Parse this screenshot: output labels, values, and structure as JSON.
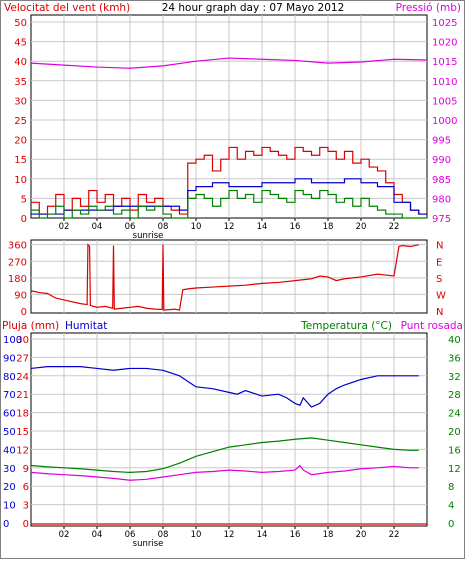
{
  "header": {
    "left_title": "Velocitat del vent (kmh)",
    "center_title": "24 hour graph day : 07 Mayo 2012",
    "right_title": "Pressió (mb)"
  },
  "x_labels": [
    "02",
    "04",
    "06",
    "08",
    "10",
    "12",
    "14",
    "16",
    "18",
    "20",
    "22"
  ],
  "sunrise_label": "sunrise",
  "colors": {
    "wind": "#dd0000",
    "gust": "#0000cc",
    "wind_avg": "#008000",
    "pressure": "#dd00dd",
    "direction": "#dd0000",
    "humidity": "#0000cc",
    "temperature": "#008000",
    "dewpoint": "#dd00dd",
    "rain": "#dd0000",
    "grid": "#c8c8c8"
  },
  "chart_data": [
    {
      "type": "line",
      "name": "wind-pressure",
      "x_range": [
        0,
        24
      ],
      "y_left_ticks": [
        0,
        5,
        10,
        15,
        20,
        25,
        30,
        35,
        40,
        45,
        50
      ],
      "y_left_range": [
        0,
        50
      ],
      "y_right_ticks": [
        975,
        980,
        985,
        990,
        995,
        1000,
        1005,
        1010,
        1015,
        1020,
        1025
      ],
      "y_right_range": [
        975,
        1025
      ],
      "series": [
        {
          "key": "wind",
          "axis": "left",
          "x": [
            0,
            0.5,
            1,
            1.5,
            2,
            2.5,
            3,
            3.5,
            4,
            4.5,
            5,
            5.5,
            6,
            6.5,
            7,
            7.5,
            8,
            8.5,
            9,
            9.5,
            10,
            10.5,
            11,
            11.5,
            12,
            12.5,
            13,
            13.5,
            14,
            14.5,
            15,
            15.5,
            16,
            16.5,
            17,
            17.5,
            18,
            18.5,
            19,
            19.5,
            20,
            20.5,
            21,
            21.5,
            22,
            22.5,
            23,
            23.5
          ],
          "y": [
            4,
            1,
            3,
            6,
            2,
            5,
            3,
            7,
            4,
            6,
            3,
            5,
            2,
            6,
            4,
            5,
            3,
            2,
            1,
            14,
            15,
            16,
            12,
            15,
            18,
            15,
            17,
            16,
            18,
            17,
            16,
            15,
            18,
            17,
            16,
            18,
            17,
            15,
            17,
            14,
            15,
            13,
            12,
            9,
            6,
            4,
            2,
            1
          ]
        },
        {
          "key": "gust",
          "axis": "left",
          "x": [
            0,
            1,
            2,
            3,
            4,
            5,
            6,
            7,
            8,
            9,
            9.5,
            10,
            11,
            12,
            13,
            14,
            15,
            16,
            17,
            18,
            19,
            20,
            21,
            22,
            23,
            23.5
          ],
          "y": [
            1,
            1,
            2,
            2,
            2,
            3,
            3,
            3,
            3,
            2,
            7,
            8,
            9,
            8,
            8,
            9,
            9,
            10,
            9,
            9,
            10,
            9,
            8,
            4,
            2,
            1
          ]
        },
        {
          "key": "wind_avg",
          "axis": "left",
          "x": [
            0,
            0.5,
            1,
            1.5,
            2,
            2.5,
            3,
            3.5,
            4,
            4.5,
            5,
            5.5,
            6,
            6.5,
            7,
            7.5,
            8,
            8.5,
            9,
            9.5,
            10,
            10.5,
            11,
            11.5,
            12,
            12.5,
            13,
            13.5,
            14,
            14.5,
            15,
            15.5,
            16,
            16.5,
            17,
            17.5,
            18,
            18.5,
            19,
            19.5,
            20,
            20.5,
            21,
            21.5,
            22,
            22.5,
            23,
            23.5
          ],
          "y": [
            2,
            0,
            1,
            3,
            0,
            2,
            1,
            3,
            2,
            3,
            1,
            2,
            0,
            3,
            2,
            3,
            1,
            0,
            0,
            5,
            6,
            5,
            3,
            5,
            7,
            5,
            6,
            4,
            7,
            6,
            5,
            4,
            7,
            6,
            5,
            7,
            6,
            4,
            5,
            3,
            5,
            3,
            2,
            1,
            1,
            0,
            0,
            0
          ]
        },
        {
          "key": "pressure",
          "axis": "right",
          "x": [
            0,
            2,
            4,
            6,
            8,
            10,
            12,
            14,
            16,
            18,
            20,
            22,
            24
          ],
          "y": [
            1014.5,
            1014,
            1013.5,
            1013.2,
            1013.8,
            1015,
            1015.8,
            1015.5,
            1015.2,
            1014.5,
            1014.8,
            1015.5,
            1015.3
          ]
        }
      ]
    },
    {
      "type": "line",
      "name": "wind-direction",
      "x_range": [
        0,
        24
      ],
      "y_left_ticks": [
        0,
        90,
        180,
        270,
        360
      ],
      "y_left_range": [
        0,
        380
      ],
      "y_right_labels": [
        "N",
        "W",
        "S",
        "E",
        "N"
      ],
      "series": [
        {
          "key": "direction",
          "axis": "left",
          "x": [
            0,
            0.5,
            1,
            1.5,
            2,
            2.5,
            3,
            3.4,
            3.45,
            3.55,
            3.6,
            4,
            4.5,
            4.95,
            5,
            5.05,
            5.5,
            6,
            6.5,
            7,
            7.5,
            7.95,
            8,
            8.05,
            8.5,
            8.7,
            9,
            9.2,
            9.5,
            10,
            11,
            12,
            13,
            14,
            15,
            16,
            17,
            17.5,
            18,
            18.5,
            19,
            19.5,
            20,
            21,
            22,
            22.3,
            22.5,
            23,
            23.5
          ],
          "y": [
            110,
            100,
            95,
            70,
            60,
            50,
            40,
            35,
            360,
            350,
            30,
            20,
            25,
            15,
            355,
            10,
            15,
            20,
            25,
            15,
            10,
            8,
            360,
            5,
            8,
            10,
            5,
            115,
            120,
            125,
            130,
            135,
            140,
            150,
            155,
            165,
            175,
            190,
            185,
            165,
            175,
            180,
            185,
            200,
            190,
            350,
            355,
            350,
            360
          ]
        }
      ]
    },
    {
      "type": "line",
      "name": "humidity-temperature",
      "x_range": [
        0,
        24
      ],
      "y_rain_ticks": [
        0,
        3,
        6,
        9,
        12,
        15,
        18,
        21,
        24,
        27,
        30
      ],
      "y_humidity_ticks": [
        0,
        10,
        20,
        30,
        40,
        50,
        60,
        70,
        80,
        90,
        100
      ],
      "y_humidity_range": [
        0,
        100
      ],
      "y_temp_ticks": [
        0,
        4,
        8,
        12,
        16,
        20,
        24,
        28,
        32,
        36,
        40
      ],
      "y_temp_range": [
        0,
        40
      ],
      "series": [
        {
          "key": "humidity",
          "axis": "humidity",
          "x": [
            0,
            1,
            2,
            3,
            4,
            5,
            6,
            7,
            8,
            9,
            9.5,
            10,
            11,
            12,
            12.5,
            13,
            14,
            15,
            15.5,
            16,
            16.3,
            16.5,
            17,
            17.5,
            18,
            18.5,
            19,
            20,
            21,
            22,
            23,
            23.5
          ],
          "y": [
            84,
            85,
            85,
            85,
            84,
            83,
            84,
            84,
            83,
            80,
            77,
            74,
            73,
            71,
            70,
            72,
            69,
            70,
            68,
            65,
            64,
            68,
            63,
            65,
            70,
            73,
            75,
            78,
            80,
            80,
            80,
            80
          ]
        },
        {
          "key": "temperature",
          "axis": "temp",
          "x": [
            0,
            1,
            2,
            3,
            4,
            5,
            6,
            7,
            8,
            9,
            10,
            11,
            12,
            13,
            14,
            15,
            16,
            17,
            18,
            19,
            20,
            21,
            22,
            23,
            23.5
          ],
          "y": [
            12.5,
            12.2,
            12,
            11.8,
            11.5,
            11.2,
            11,
            11.2,
            11.8,
            13,
            14.5,
            15.5,
            16.5,
            17,
            17.5,
            17.8,
            18.2,
            18.5,
            18,
            17.5,
            17,
            16.5,
            16,
            15.8,
            15.8
          ]
        },
        {
          "key": "dewpoint",
          "axis": "temp",
          "x": [
            0,
            1,
            2,
            3,
            4,
            5,
            6,
            7,
            8,
            9,
            10,
            11,
            12,
            13,
            14,
            15,
            16,
            16.3,
            16.5,
            17,
            18,
            19,
            20,
            21,
            22,
            23,
            23.5
          ],
          "y": [
            11,
            10.7,
            10.5,
            10.3,
            10,
            9.7,
            9.3,
            9.5,
            10,
            10.5,
            11,
            11.2,
            11.5,
            11.3,
            11,
            11.2,
            11.5,
            12.5,
            11.5,
            10.5,
            11,
            11.3,
            11.8,
            12,
            12.3,
            12,
            12
          ]
        },
        {
          "key": "rain",
          "axis": "rain",
          "x": [
            0,
            24
          ],
          "y": [
            0,
            0
          ]
        }
      ],
      "labels": {
        "rain": "Pluja (mm)",
        "humidity": "Humitat",
        "temperature": "Temperatura (°C)",
        "dewpoint": "Punt rosada"
      }
    }
  ]
}
